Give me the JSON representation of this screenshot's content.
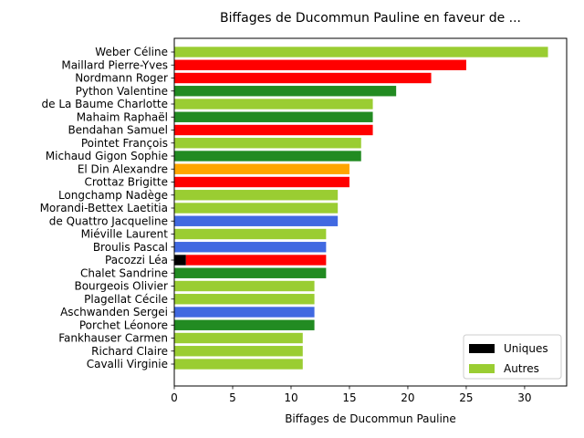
{
  "chart_data": {
    "type": "bar",
    "orientation": "horizontal",
    "title": "Biffages de Ducommun Pauline en faveur de ...",
    "xlabel": "Biffages de Ducommun Pauline",
    "ylabel": "",
    "xlim": [
      0,
      33.6
    ],
    "xticks": [
      0,
      5,
      10,
      15,
      20,
      25,
      30
    ],
    "grid": false,
    "legend_placement": "bottom-right",
    "legend": [
      {
        "label": "Uniques",
        "color": "#000000"
      },
      {
        "label": "Autres",
        "color": "#9acd32"
      }
    ],
    "categories": [
      "Weber Céline",
      "Maillard Pierre-Yves",
      "Nordmann Roger",
      "Python Valentine",
      "de La Baume Charlotte",
      "Mahaim Raphaël",
      "Bendahan Samuel",
      "Pointet François",
      "Michaud Gigon Sophie",
      "El Din Alexandre",
      "Crottaz Brigitte",
      "Longchamp Nadège",
      "Morandi-Bettex Laetitia",
      "de Quattro Jacqueline",
      "Miéville Laurent",
      "Broulis Pascal",
      "Pacozzi Léa",
      "Chalet Sandrine",
      "Bourgeois Olivier",
      "Plagellat Cécile",
      "Aschwanden Sergei",
      "Porchet Léonore",
      "Fankhauser Carmen",
      "Richard Claire",
      "Cavalli Virginie"
    ],
    "uniques": [
      0,
      0,
      0,
      0,
      0,
      0,
      0,
      0,
      0,
      0,
      0,
      0,
      0,
      0,
      0,
      0,
      1,
      0,
      0,
      0,
      0,
      0,
      0,
      0,
      0
    ],
    "values": [
      32,
      25,
      22,
      19,
      17,
      17,
      17,
      16,
      16,
      15,
      15,
      14,
      14,
      14,
      13,
      13,
      13,
      13,
      12,
      12,
      12,
      12,
      11,
      11,
      11
    ],
    "colors": [
      "#9acd32",
      "#ff0000",
      "#ff0000",
      "#228b22",
      "#9acd32",
      "#228b22",
      "#ff0000",
      "#9acd32",
      "#228b22",
      "#ffa500",
      "#ff0000",
      "#9acd32",
      "#9acd32",
      "#4169e1",
      "#9acd32",
      "#4169e1",
      "#ff0000",
      "#228b22",
      "#9acd32",
      "#9acd32",
      "#4169e1",
      "#228b22",
      "#9acd32",
      "#9acd32",
      "#9acd32"
    ]
  }
}
